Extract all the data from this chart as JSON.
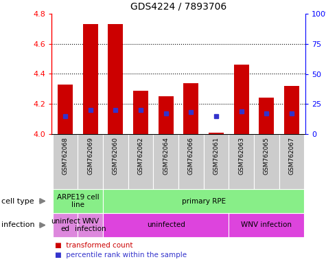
{
  "title": "GDS4224 / 7893706",
  "samples": [
    "GSM762068",
    "GSM762069",
    "GSM762060",
    "GSM762062",
    "GSM762064",
    "GSM762066",
    "GSM762061",
    "GSM762063",
    "GSM762065",
    "GSM762067"
  ],
  "transformed_count": [
    4.33,
    4.73,
    4.73,
    4.29,
    4.25,
    4.34,
    4.01,
    4.46,
    4.24,
    4.32
  ],
  "percentile_rank": [
    15,
    20,
    20,
    20,
    17,
    18,
    15,
    19,
    17,
    17
  ],
  "bar_bottom": 4.0,
  "ylim": [
    4.0,
    4.8
  ],
  "yticks_left": [
    4.0,
    4.2,
    4.4,
    4.6,
    4.8
  ],
  "yticks_right": [
    0,
    25,
    50,
    75,
    100
  ],
  "bar_color": "#cc0000",
  "dot_color": "#3333cc",
  "cell_type_groups": [
    {
      "text": "ARPE19 cell\nline",
      "start": 0,
      "end": 2,
      "color": "#88ee88"
    },
    {
      "text": "primary RPE",
      "start": 2,
      "end": 10,
      "color": "#88ee88"
    }
  ],
  "infection_groups": [
    {
      "text": "uninfect\ned",
      "start": 0,
      "end": 1,
      "color": "#dd88dd"
    },
    {
      "text": "WNV\ninfection",
      "start": 1,
      "end": 2,
      "color": "#dd88dd"
    },
    {
      "text": "uninfected",
      "start": 2,
      "end": 7,
      "color": "#dd44dd"
    },
    {
      "text": "WNV infection",
      "start": 7,
      "end": 10,
      "color": "#dd44dd"
    }
  ],
  "legend_items": [
    {
      "color": "#cc0000",
      "label": "transformed count"
    },
    {
      "color": "#3333cc",
      "label": "percentile rank within the sample"
    }
  ],
  "tick_area_color": "#cccccc",
  "grid_color": "black",
  "cell_type_label": "cell type",
  "infection_label": "infection"
}
